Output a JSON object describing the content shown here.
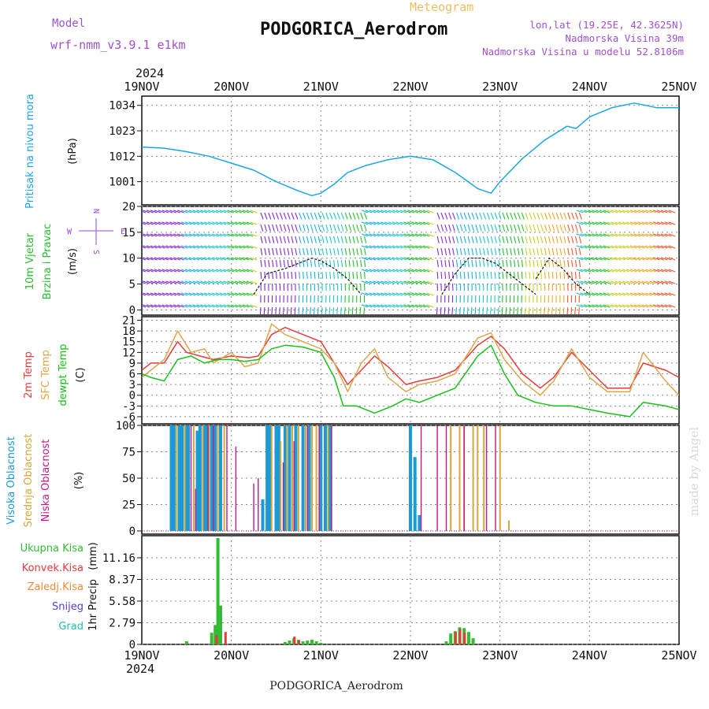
{
  "header": {
    "model_label": "Model",
    "model_name": "wrf-nmm_v3.9.1 e1km",
    "meteogram_label": "Meteogram",
    "station": "PODGORICA_Aerodrom",
    "lonlat": "lon,lat (19.25E, 42.3625N)",
    "elevation": "Nadmorska Visina 39m",
    "model_elevation": "Nadmorska Visina u modelu 52.8106m",
    "watermark": "made by Angel",
    "footer_station": "PODGORICA_Aerodrom"
  },
  "colors": {
    "pressure": "#1aa6e6",
    "wind_title": "#22c02a",
    "temp2m": "#e83a3a",
    "sfc": "#dba64a",
    "dewpt": "#18c018",
    "high_cloud": "#1b9ad8",
    "mid_cloud": "#d8a63a",
    "low_cloud": "#c0188a",
    "total_precip": "#33bb33",
    "conv_precip": "#e83a3a",
    "frz_precip": "#ef8a3a",
    "snow": "#5a3ad8",
    "grad": "#22c0b0",
    "axis_purple": "#9a4ad0",
    "grid": "#888888"
  },
  "time_axis": {
    "year": "2024",
    "ticks": [
      "19NOV",
      "20NOV",
      "21NOV",
      "22NOV",
      "23NOV",
      "24NOV",
      "25NOV"
    ],
    "day_range": [
      0,
      6
    ]
  },
  "chart_data": [
    {
      "type": "line",
      "panel": "pressure",
      "ylabel": "Pritisak na nivou mora",
      "unit": "(hPa)",
      "yticks": [
        "1001",
        "1012",
        "1023",
        "1034"
      ],
      "ytick_values": [
        1001,
        1012,
        1023,
        1034
      ],
      "ylim": [
        991,
        1038
      ],
      "grid": true,
      "series": [
        {
          "x": [
            0,
            0.25,
            0.5,
            0.75,
            1.0,
            1.25,
            1.5,
            1.75,
            1.9,
            2.0,
            2.15,
            2.3,
            2.5,
            2.75,
            3.0,
            3.25,
            3.5,
            3.75,
            3.9,
            4.0,
            4.25,
            4.5,
            4.75,
            4.85,
            5.0,
            5.25,
            5.5,
            5.75,
            6.0
          ],
          "values": [
            1016,
            1015.5,
            1014,
            1012,
            1009,
            1006,
            1001,
            997,
            995,
            996,
            1000,
            1005,
            1008,
            1010.5,
            1012,
            1010.5,
            1005,
            998,
            996,
            1001,
            1011,
            1019,
            1025,
            1024,
            1029,
            1033,
            1035,
            1033,
            1033
          ]
        }
      ]
    },
    {
      "type": "line",
      "panel": "wind",
      "ylabel_lines": [
        "10m Vjetar",
        "Brzina i Pravac"
      ],
      "unit": "(m/s)",
      "compass": {
        "n": "N",
        "s": "S",
        "e": "E",
        "w": "W"
      },
      "yticks": [
        "0",
        "5",
        "10",
        "15",
        "20"
      ],
      "ytick_values": [
        0,
        5,
        10,
        15,
        20
      ],
      "ylim": [
        -1,
        20
      ],
      "grid": true,
      "series": [
        {
          "name": "",
          "x": [
            1.25,
            1.4,
            1.6,
            1.75,
            1.9,
            2.0,
            2.15,
            2.3,
            2.45
          ],
          "values": [
            3,
            7,
            8,
            9,
            10,
            9.5,
            8,
            6,
            3
          ]
        },
        {
          "name": "",
          "x": [
            3.35,
            3.5,
            3.65,
            3.8,
            3.95,
            4.1,
            4.25,
            4.4
          ],
          "values": [
            3,
            7,
            10,
            10,
            9,
            7,
            5,
            3
          ]
        },
        {
          "name": "",
          "x": [
            4.4,
            4.55,
            4.7,
            4.85,
            5.0
          ],
          "values": [
            6,
            10,
            8,
            5,
            3
          ]
        }
      ]
    },
    {
      "type": "line",
      "panel": "temperature",
      "ylabel_lines": [
        "2m Temp",
        "SFC Temp",
        "dewpt Temp"
      ],
      "unit": "(C)",
      "yticks": [
        "-6",
        "-3",
        "0",
        "3",
        "6",
        "9",
        "12",
        "15",
        "18",
        "21"
      ],
      "ytick_values": [
        -6,
        -3,
        0,
        3,
        6,
        9,
        12,
        15,
        18,
        21
      ],
      "ylim": [
        -8,
        22
      ],
      "grid": true,
      "series": [
        {
          "name": "2m Temp",
          "x": [
            0,
            0.1,
            0.25,
            0.4,
            0.5,
            0.65,
            0.8,
            1.0,
            1.2,
            1.3,
            1.45,
            1.6,
            1.8,
            2.0,
            2.15,
            2.3,
            2.45,
            2.6,
            2.75,
            2.95,
            3.1,
            3.3,
            3.5,
            3.75,
            3.9,
            4.05,
            4.25,
            4.45,
            4.6,
            4.8,
            5.0,
            5.2,
            5.45,
            5.6,
            5.85,
            6.0
          ],
          "values": [
            7,
            9,
            9,
            15,
            12,
            11,
            10,
            11,
            10.5,
            11,
            17,
            19,
            17,
            15,
            9,
            3,
            7,
            11,
            8,
            3,
            4,
            5,
            7,
            14,
            16.5,
            13,
            6,
            2,
            5,
            12,
            7,
            2,
            2,
            9,
            7,
            5
          ]
        },
        {
          "name": "SFC Temp",
          "x": [
            0,
            0.1,
            0.25,
            0.4,
            0.55,
            0.7,
            0.8,
            1.0,
            1.15,
            1.3,
            1.45,
            1.6,
            1.8,
            2.0,
            2.15,
            2.3,
            2.45,
            2.6,
            2.75,
            2.95,
            3.1,
            3.3,
            3.5,
            3.75,
            3.9,
            4.05,
            4.25,
            4.45,
            4.6,
            4.8,
            5.0,
            5.2,
            5.45,
            5.6,
            5.85,
            6.0
          ],
          "values": [
            5,
            7,
            10,
            18,
            12,
            13,
            9,
            12,
            8,
            9,
            20,
            17,
            15,
            13,
            9,
            1,
            9,
            13,
            5,
            1,
            3,
            4,
            6,
            16,
            17.5,
            10,
            4,
            0,
            4,
            13,
            5,
            1,
            1,
            12,
            4,
            0
          ]
        },
        {
          "name": "dewpt Temp",
          "x": [
            0,
            0.1,
            0.25,
            0.4,
            0.55,
            0.7,
            0.85,
            1.0,
            1.15,
            1.3,
            1.45,
            1.6,
            1.8,
            2.0,
            2.15,
            2.25,
            2.4,
            2.6,
            2.8,
            2.95,
            3.1,
            3.3,
            3.5,
            3.75,
            3.9,
            4.05,
            4.2,
            4.4,
            4.6,
            4.8,
            5.0,
            5.2,
            5.45,
            5.6,
            5.85,
            6.0
          ],
          "values": [
            6,
            5,
            4,
            10,
            11,
            9,
            10,
            10,
            9.5,
            10,
            13,
            14,
            13.5,
            12,
            5,
            -3,
            -3,
            -5,
            -3,
            -1,
            -2,
            0,
            2,
            11,
            14,
            6,
            0,
            -2,
            -3,
            -3,
            -4,
            -5,
            -6,
            -2,
            -3,
            -4
          ]
        }
      ]
    },
    {
      "type": "bar",
      "panel": "cloud",
      "ylabel_lines": [
        "Visoka Oblacnost",
        "Srednja Oblacnost",
        "Niska Oblacnost"
      ],
      "unit": "(%)",
      "yticks": [
        "0",
        "25",
        "50",
        "75",
        "100"
      ],
      "ytick_values": [
        0,
        25,
        50,
        75,
        100
      ],
      "ylim": [
        -3,
        100
      ],
      "grid": true,
      "series": [
        {
          "name": "Visoka Oblacnost",
          "x": [
            0.33,
            0.36,
            0.42,
            0.45,
            0.5,
            0.52,
            0.62,
            0.65,
            0.7,
            0.72,
            0.78,
            0.82,
            0.88,
            1.35,
            1.4,
            1.43,
            1.5,
            1.53,
            1.6,
            1.65,
            1.72,
            1.8,
            1.87,
            2.0,
            2.05,
            2.1,
            3.0,
            3.05,
            3.1
          ],
          "values": [
            100,
            100,
            100,
            100,
            100,
            100,
            95,
            100,
            100,
            100,
            100,
            100,
            100,
            30,
            100,
            100,
            100,
            100,
            100,
            100,
            100,
            100,
            100,
            100,
            100,
            100,
            100,
            70,
            15
          ]
        },
        {
          "name": "Srednja Oblacnost",
          "x": [
            0.39,
            0.48,
            0.58,
            0.68,
            0.75,
            0.85,
            0.92,
            1.45,
            1.55,
            1.62,
            1.68,
            1.75,
            1.83,
            1.9,
            1.95,
            2.08,
            3.45,
            3.55,
            3.6,
            3.7,
            3.75,
            3.82,
            4.0,
            4.1
          ],
          "values": [
            100,
            100,
            100,
            100,
            100,
            100,
            100,
            100,
            85,
            100,
            100,
            100,
            100,
            100,
            100,
            100,
            100,
            100,
            100,
            100,
            100,
            100,
            100,
            10
          ]
        },
        {
          "name": "Niska Oblacnost",
          "x": [
            0.55,
            0.6,
            0.74,
            0.8,
            0.95,
            1.05,
            1.25,
            1.3,
            1.58,
            1.7,
            1.85,
            1.98,
            2.12,
            3.12,
            3.3,
            3.4,
            3.6,
            3.85,
            3.95
          ],
          "values": [
            100,
            40,
            100,
            100,
            100,
            80,
            45,
            50,
            65,
            85,
            100,
            100,
            100,
            100,
            100,
            100,
            100,
            100,
            100
          ]
        }
      ]
    },
    {
      "type": "bar",
      "panel": "precip",
      "ylabel": "1hr Precip",
      "unit": "(mm)",
      "yticks": [
        "0",
        "2.79",
        "5.58",
        "8.37",
        "11.16"
      ],
      "ytick_values": [
        0,
        2.79,
        5.58,
        8.37,
        11.16
      ],
      "ylim": [
        0,
        14
      ],
      "grid": true,
      "legend": [
        "Ukupna Kisa",
        "Konvek.Kisa",
        "Zaledj.Kisa",
        "Snijeg",
        "Grad"
      ],
      "series": [
        {
          "name": "Ukupna Kisa",
          "x": [
            0.5,
            0.78,
            0.82,
            0.85,
            0.88,
            1.6,
            1.65,
            1.7,
            1.75,
            1.8,
            1.85,
            1.9,
            1.95,
            2.0,
            3.4,
            3.45,
            3.5,
            3.55,
            3.6,
            3.65,
            3.7
          ],
          "values": [
            0.4,
            1.5,
            2.5,
            13.7,
            5,
            0.3,
            0.5,
            0.8,
            0.6,
            0.4,
            0.5,
            0.6,
            0.4,
            0.2,
            0.4,
            1.4,
            1.7,
            2.2,
            2.1,
            1.6,
            0.8
          ]
        },
        {
          "name": "Konvek.Kisa",
          "x": [
            0.8,
            0.9,
            1.67,
            1.72,
            3.47,
            3.52,
            3.57
          ],
          "values": [
            1.2,
            1.6,
            1,
            0.5,
            1.6,
            2.0,
            1.5
          ]
        }
      ]
    }
  ]
}
